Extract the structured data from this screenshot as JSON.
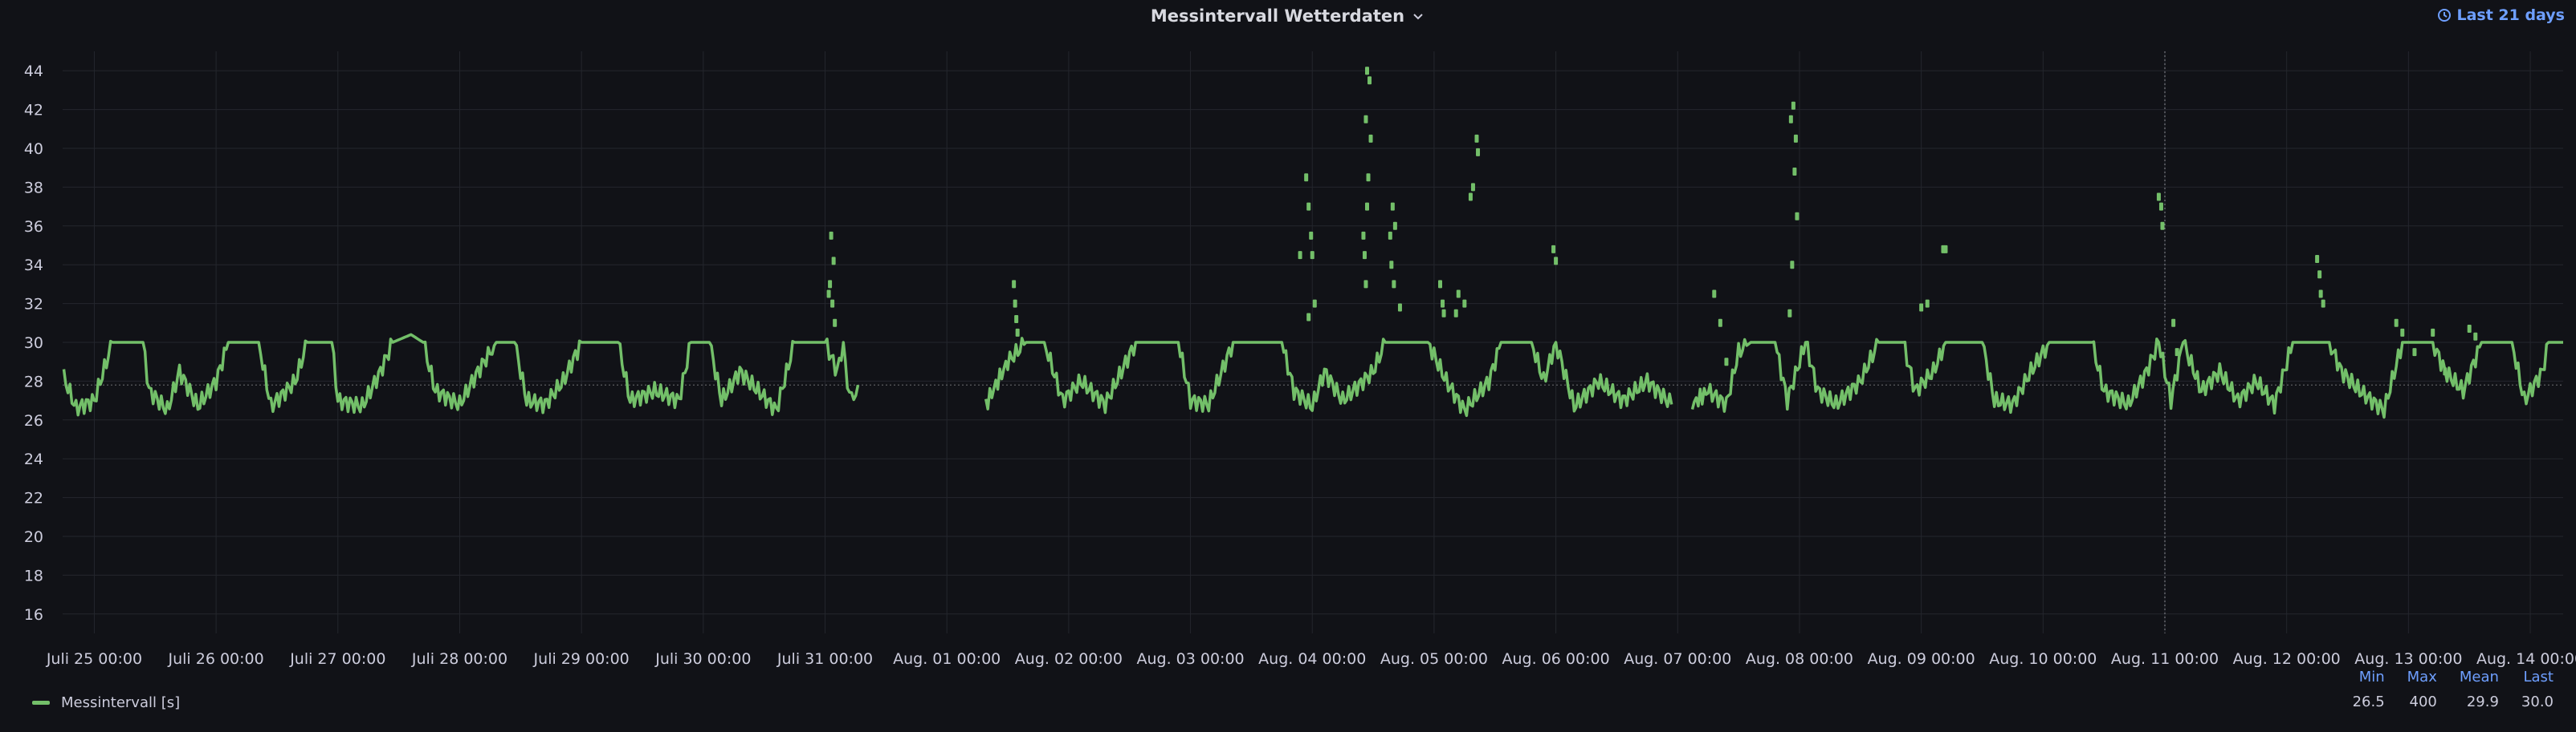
{
  "panel": {
    "title": "Messintervall Wetterdaten",
    "time_range": "Last 21 days",
    "icons": {
      "title_menu": "chevron-down-icon",
      "time": "clock-icon"
    }
  },
  "colors": {
    "background": "#111217",
    "series": "#73bf69",
    "grid": "#24262d",
    "axis_text": "#ccccdc",
    "accent": "#6e9fff"
  },
  "legend": {
    "series_name": "Messintervall [s]",
    "headers": {
      "min": "Min",
      "max": "Max",
      "mean": "Mean",
      "last": "Last"
    },
    "values": {
      "min": "26.5",
      "max": "400",
      "mean": "29.9",
      "last": "30.0"
    }
  },
  "chart_data": {
    "type": "line",
    "x_unit": "days since Juli 25 00:00",
    "x_ticks": [
      "Juli 25 00:00",
      "Juli 26 00:00",
      "Juli 27 00:00",
      "Juli 28 00:00",
      "Juli 29 00:00",
      "Juli 30 00:00",
      "Juli 31 00:00",
      "Aug. 01 00:00",
      "Aug. 02 00:00",
      "Aug. 03 00:00",
      "Aug. 04 00:00",
      "Aug. 05 00:00",
      "Aug. 06 00:00",
      "Aug. 07 00:00",
      "Aug. 08 00:00",
      "Aug. 09 00:00",
      "Aug. 10 00:00",
      "Aug. 11 00:00",
      "Aug. 12 00:00",
      "Aug. 13 00:00",
      "Aug. 14 00:00"
    ],
    "xlim": [
      -0.26,
      20.27
    ],
    "y_ticks": [
      16,
      18,
      20,
      22,
      24,
      26,
      28,
      30,
      32,
      34,
      36,
      38,
      40,
      42,
      44
    ],
    "ylim": [
      15,
      45
    ],
    "reference_line": 27.8,
    "cursor_x": 17.0,
    "gaps": [
      [
        6.28,
        7.3
      ],
      [
        12.98,
        13.08
      ]
    ],
    "series": [
      {
        "name": "Messintervall [s]",
        "baseline_high": 30.0,
        "baseline_low": 26.8,
        "points": [
          [
            -0.25,
            28.2
          ],
          [
            -0.15,
            26.6
          ],
          [
            0.0,
            27.0
          ],
          [
            0.1,
            29.0
          ],
          [
            0.15,
            30.0
          ],
          [
            0.4,
            30.0
          ],
          [
            0.45,
            27.5
          ],
          [
            0.6,
            26.5
          ],
          [
            0.7,
            28.5
          ],
          [
            0.85,
            26.7
          ],
          [
            1.0,
            28.0
          ],
          [
            1.1,
            30.0
          ],
          [
            1.35,
            30.0
          ],
          [
            1.45,
            26.7
          ],
          [
            1.65,
            28.0
          ],
          [
            1.75,
            30.0
          ],
          [
            1.95,
            30.0
          ],
          [
            2.0,
            27.0
          ],
          [
            2.2,
            26.7
          ],
          [
            2.35,
            28.5
          ],
          [
            2.45,
            30.0
          ],
          [
            2.6,
            30.4
          ],
          [
            2.7,
            30.0
          ],
          [
            2.8,
            27.5
          ],
          [
            3.0,
            26.8
          ],
          [
            3.15,
            28.5
          ],
          [
            3.3,
            30.0
          ],
          [
            3.45,
            30.0
          ],
          [
            3.55,
            27.0
          ],
          [
            3.7,
            26.8
          ],
          [
            3.85,
            28.0
          ],
          [
            4.0,
            30.0
          ],
          [
            4.3,
            30.0
          ],
          [
            4.4,
            27.0
          ],
          [
            4.6,
            27.5
          ],
          [
            4.8,
            27.0
          ],
          [
            4.9,
            30.0
          ],
          [
            5.05,
            30.0
          ],
          [
            5.15,
            27.0
          ],
          [
            5.3,
            28.5
          ],
          [
            5.45,
            27.5
          ],
          [
            5.6,
            26.5
          ],
          [
            5.75,
            30.0
          ],
          [
            6.0,
            30.0
          ],
          [
            6.1,
            28.5
          ],
          [
            6.15,
            30.0
          ],
          [
            6.2,
            27.0
          ],
          [
            6.27,
            27.8
          ],
          [
            7.32,
            26.8
          ],
          [
            7.5,
            29.0
          ],
          [
            7.65,
            30.0
          ],
          [
            7.8,
            30.0
          ],
          [
            7.95,
            27.0
          ],
          [
            8.1,
            28.0
          ],
          [
            8.3,
            26.8
          ],
          [
            8.55,
            30.0
          ],
          [
            8.9,
            30.0
          ],
          [
            9.0,
            27.0
          ],
          [
            9.15,
            26.8
          ],
          [
            9.35,
            30.0
          ],
          [
            9.75,
            30.0
          ],
          [
            9.85,
            27.5
          ],
          [
            10.0,
            26.7
          ],
          [
            10.1,
            28.5
          ],
          [
            10.25,
            27.0
          ],
          [
            10.5,
            28.5
          ],
          [
            10.6,
            30.0
          ],
          [
            10.95,
            30.0
          ],
          [
            11.1,
            28.0
          ],
          [
            11.25,
            26.5
          ],
          [
            11.45,
            28.0
          ],
          [
            11.55,
            30.0
          ],
          [
            11.8,
            30.0
          ],
          [
            11.9,
            28.0
          ],
          [
            12.0,
            30.0
          ],
          [
            12.15,
            26.7
          ],
          [
            12.35,
            28.0
          ],
          [
            12.55,
            27.0
          ],
          [
            12.75,
            28.0
          ],
          [
            12.95,
            26.8
          ],
          [
            13.12,
            26.8
          ],
          [
            13.25,
            27.5
          ],
          [
            13.4,
            26.8
          ],
          [
            13.5,
            29.5
          ],
          [
            13.6,
            30.0
          ],
          [
            13.8,
            30.0
          ],
          [
            13.9,
            27.0
          ],
          [
            14.05,
            30.0
          ],
          [
            14.15,
            27.5
          ],
          [
            14.3,
            26.8
          ],
          [
            14.5,
            28.0
          ],
          [
            14.65,
            30.0
          ],
          [
            14.85,
            30.0
          ],
          [
            14.95,
            27.5
          ],
          [
            15.1,
            28.5
          ],
          [
            15.2,
            30.0
          ],
          [
            15.5,
            30.0
          ],
          [
            15.6,
            27.0
          ],
          [
            15.75,
            26.8
          ],
          [
            15.9,
            28.5
          ],
          [
            16.05,
            30.0
          ],
          [
            16.4,
            30.0
          ],
          [
            16.5,
            27.5
          ],
          [
            16.7,
            26.8
          ],
          [
            16.85,
            28.5
          ],
          [
            16.95,
            30.0
          ],
          [
            17.05,
            27.0
          ],
          [
            17.15,
            30.0
          ],
          [
            17.3,
            27.5
          ],
          [
            17.45,
            28.5
          ],
          [
            17.6,
            27.0
          ],
          [
            17.75,
            28.0
          ],
          [
            17.9,
            26.8
          ],
          [
            18.05,
            30.0
          ],
          [
            18.35,
            30.0
          ],
          [
            18.45,
            28.5
          ],
          [
            18.6,
            27.5
          ],
          [
            18.8,
            26.5
          ],
          [
            18.95,
            30.0
          ],
          [
            19.2,
            30.0
          ],
          [
            19.3,
            28.5
          ],
          [
            19.45,
            27.5
          ],
          [
            19.6,
            30.0
          ],
          [
            19.85,
            30.0
          ],
          [
            19.95,
            27.0
          ],
          [
            20.1,
            28.5
          ],
          [
            20.15,
            30.0
          ],
          [
            20.27,
            30.0
          ]
        ],
        "scatter": [
          [
            6.05,
            35.5
          ],
          [
            6.07,
            34.2
          ],
          [
            6.04,
            33.0
          ],
          [
            6.03,
            32.5
          ],
          [
            6.06,
            32.0
          ],
          [
            6.08,
            31.0
          ],
          [
            7.55,
            33.0
          ],
          [
            7.56,
            32.0
          ],
          [
            7.57,
            31.2
          ],
          [
            7.58,
            30.5
          ],
          [
            9.95,
            38.5
          ],
          [
            9.97,
            37.0
          ],
          [
            9.99,
            35.5
          ],
          [
            9.9,
            34.5
          ],
          [
            10.0,
            34.5
          ],
          [
            10.02,
            32.0
          ],
          [
            9.97,
            31.3
          ],
          [
            10.45,
            44.0
          ],
          [
            10.47,
            43.5
          ],
          [
            10.44,
            41.5
          ],
          [
            10.48,
            40.5
          ],
          [
            10.46,
            38.5
          ],
          [
            10.45,
            37.0
          ],
          [
            10.42,
            35.5
          ],
          [
            10.43,
            34.5
          ],
          [
            10.44,
            33.0
          ],
          [
            10.66,
            37.0
          ],
          [
            10.68,
            36.0
          ],
          [
            10.64,
            35.5
          ],
          [
            10.65,
            34.0
          ],
          [
            10.67,
            33.0
          ],
          [
            10.72,
            31.8
          ],
          [
            11.35,
            40.5
          ],
          [
            11.36,
            39.8
          ],
          [
            11.32,
            38.0
          ],
          [
            11.3,
            37.5
          ],
          [
            11.2,
            32.5
          ],
          [
            11.25,
            32.0
          ],
          [
            11.18,
            31.5
          ],
          [
            11.05,
            33.0
          ],
          [
            11.07,
            32.0
          ],
          [
            11.08,
            31.5
          ],
          [
            11.98,
            34.8
          ],
          [
            12.0,
            34.2
          ],
          [
            13.3,
            32.5
          ],
          [
            13.35,
            31.0
          ],
          [
            13.4,
            29.0
          ],
          [
            13.95,
            42.2
          ],
          [
            13.93,
            41.5
          ],
          [
            13.97,
            40.5
          ],
          [
            13.96,
            38.8
          ],
          [
            13.98,
            36.5
          ],
          [
            13.94,
            34.0
          ],
          [
            13.92,
            31.5
          ],
          [
            15.0,
            31.8
          ],
          [
            15.05,
            32.0
          ],
          [
            15.18,
            34.8
          ],
          [
            15.2,
            34.8
          ],
          [
            16.95,
            37.5
          ],
          [
            16.97,
            37.0
          ],
          [
            16.98,
            36.0
          ],
          [
            17.07,
            31.0
          ],
          [
            17.1,
            29.5
          ],
          [
            18.25,
            34.3
          ],
          [
            18.27,
            33.5
          ],
          [
            18.28,
            32.5
          ],
          [
            18.3,
            32.0
          ],
          [
            18.9,
            31.0
          ],
          [
            18.95,
            30.5
          ],
          [
            19.05,
            29.5
          ],
          [
            19.2,
            30.5
          ],
          [
            19.3,
            28.5
          ],
          [
            19.5,
            30.7
          ],
          [
            19.55,
            30.3
          ]
        ]
      }
    ]
  }
}
